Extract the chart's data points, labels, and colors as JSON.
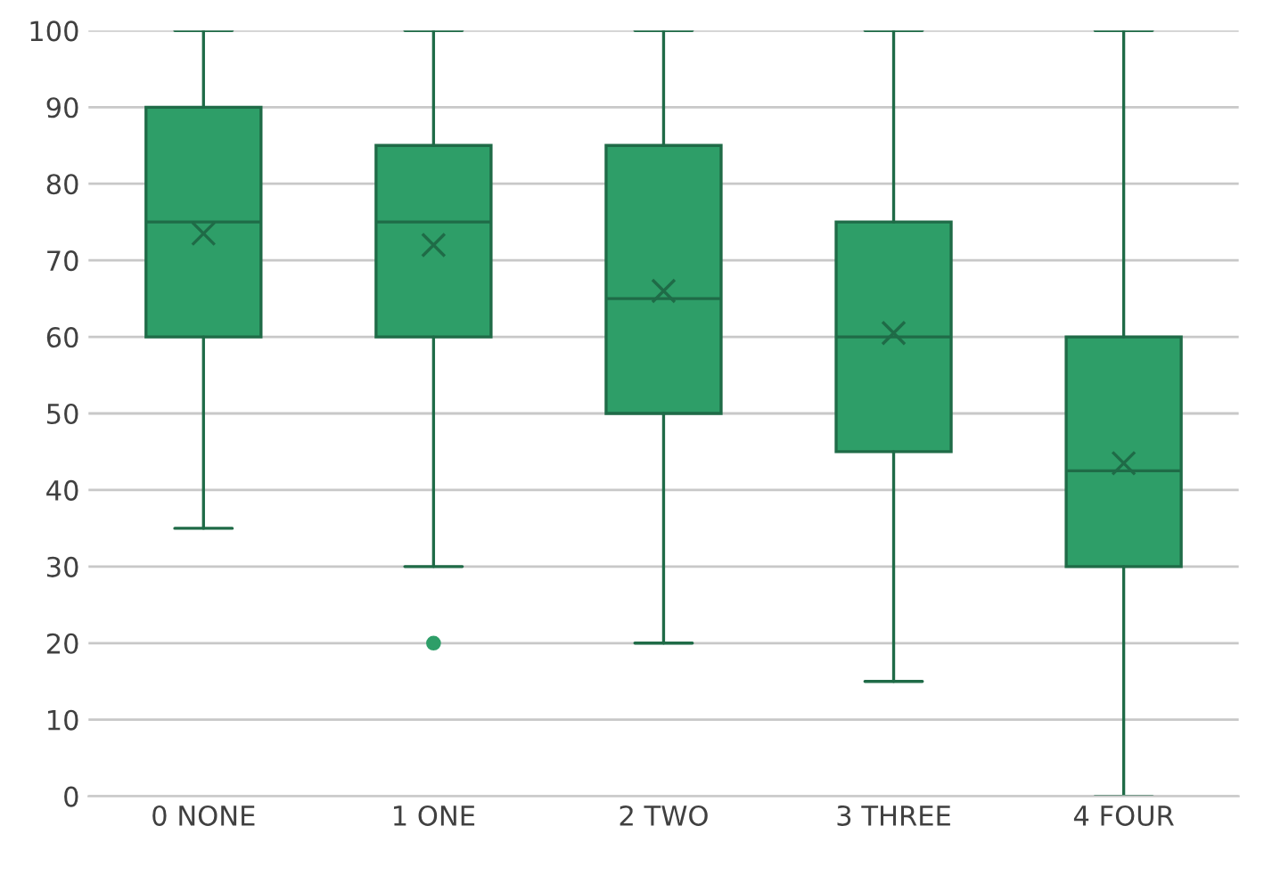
{
  "chart_data": {
    "type": "box",
    "categories": [
      "0 NONE",
      "1 ONE",
      "2 TWO",
      "3 THREE",
      "4 FOUR"
    ],
    "color": "#2e9e68",
    "boxes": [
      {
        "low": 35,
        "q1": 60,
        "median": 75,
        "q3": 90,
        "high": 100,
        "mean": 73.5
      },
      {
        "low": 30,
        "q1": 60,
        "median": 75,
        "q3": 85,
        "high": 100,
        "mean": 72,
        "outliers": [
          20
        ]
      },
      {
        "low": 20,
        "q1": 50,
        "median": 65,
        "q3": 85,
        "high": 100,
        "mean": 66
      },
      {
        "low": 15,
        "q1": 45,
        "median": 60,
        "q3": 75,
        "high": 100,
        "mean": 60.5
      },
      {
        "low": 0,
        "q1": 30,
        "median": 42.5,
        "q3": 60,
        "high": 100,
        "mean": 43.5
      }
    ],
    "ylim": [
      0,
      100
    ],
    "yticks": [
      0,
      10,
      20,
      30,
      40,
      50,
      60,
      70,
      80,
      90,
      100
    ],
    "grid": "y",
    "legend": false
  }
}
